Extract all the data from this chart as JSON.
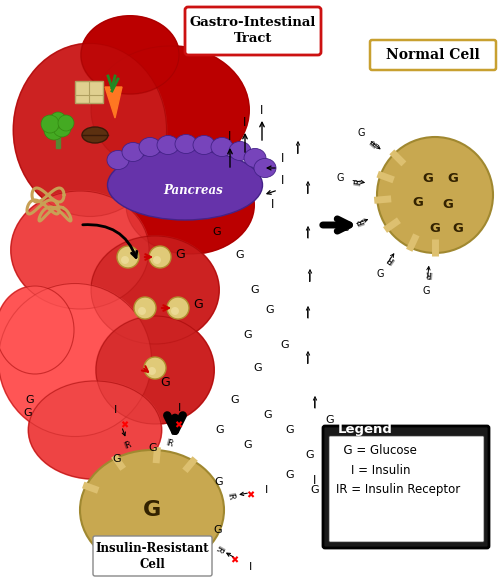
{
  "bg_color": "#ffffff",
  "gi_tract_label": "Gastro-Intestinal\nTract",
  "pancreas_label": "Pancreas",
  "normal_cell_label": "Normal Cell",
  "insulin_resistant_label": "Insulin-Resistant\nCell",
  "legend_title": "Legend",
  "legend_lines": [
    "  G = Glucose",
    "    I = Insulin",
    "IR = Insulin Receptor"
  ],
  "gi_color_dark": "#bb0000",
  "gi_color_mid": "#cc2222",
  "gi_color_light": "#ee4444",
  "gi_color_bright": "#ff5555",
  "pancreas_color": "#6633aa",
  "pancreas_bump": "#7744bb",
  "cell_color": "#c8a850",
  "cell_light": "#ddc070",
  "cell_dark": "#a08830"
}
